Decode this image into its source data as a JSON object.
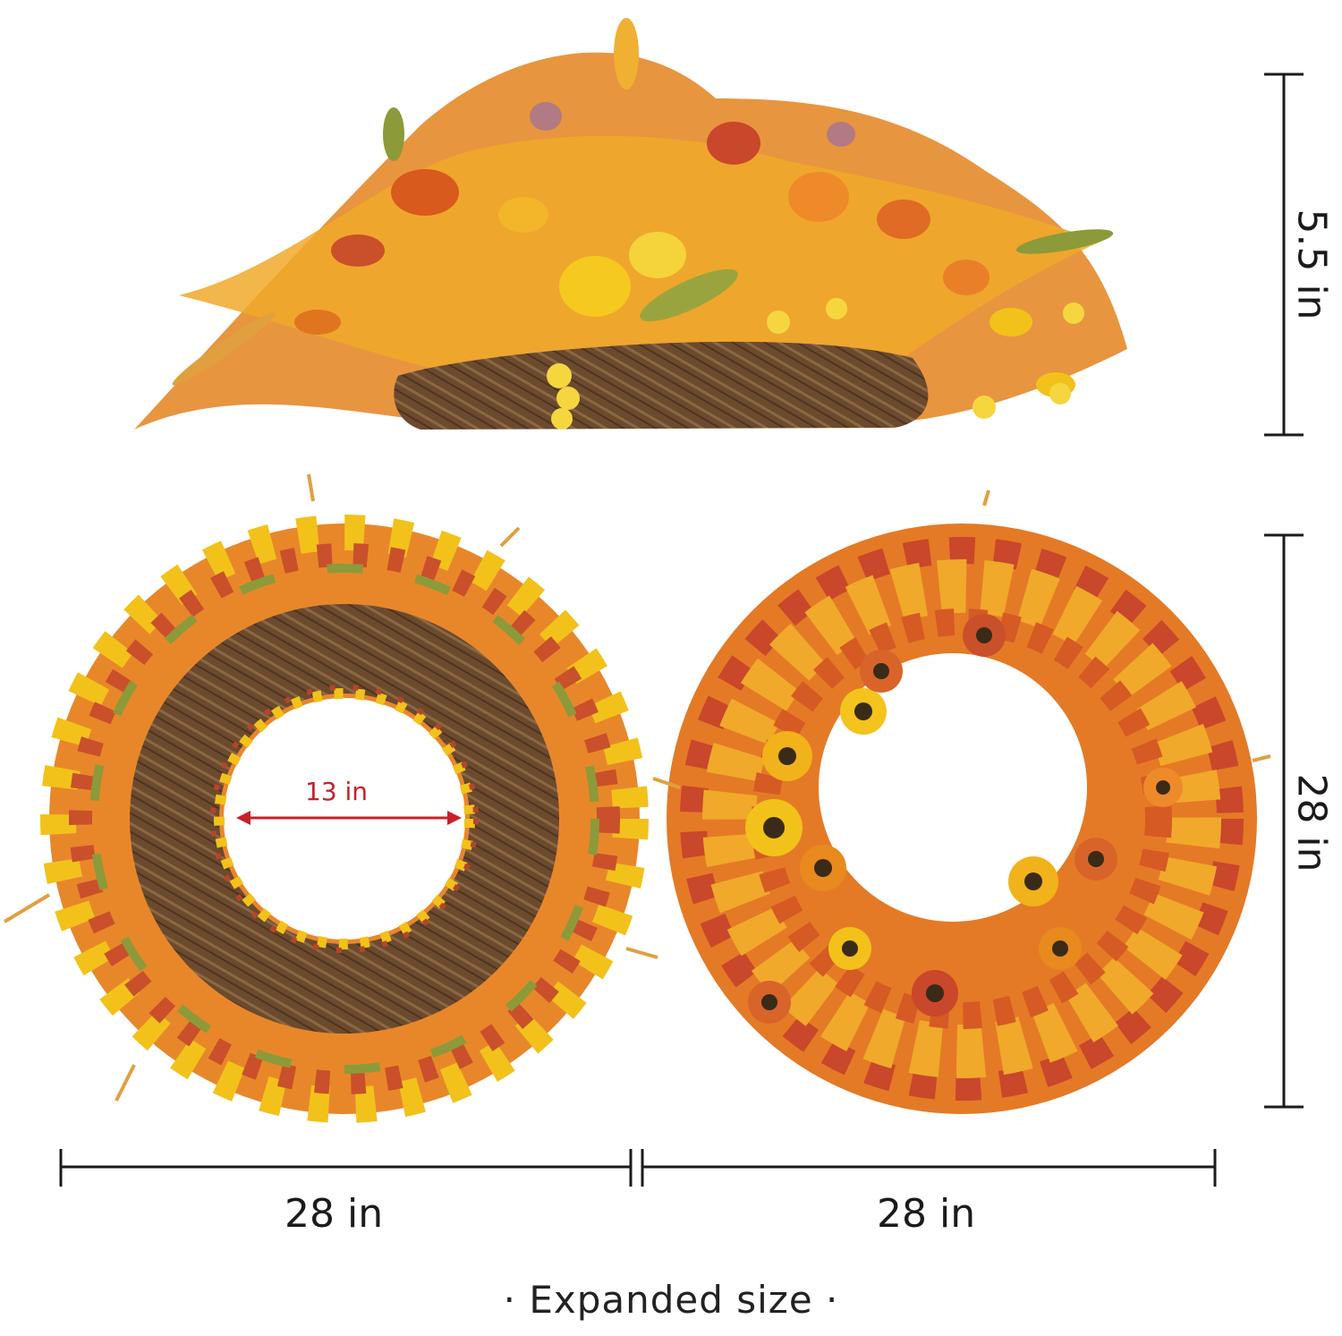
{
  "image": {
    "subject": "autumn-wreath-product-dimensions",
    "colors": {
      "background": "#ffffff",
      "dimension_line": "#1b1b1b",
      "inner_arrow": "#c8202a",
      "vine": "#6b4a2e",
      "orange": "#e0751f",
      "yellow": "#f2c21b",
      "rust": "#b4462a",
      "leaf_green": "#8c9a3a",
      "mauve": "#b27a82"
    }
  },
  "dimensions": {
    "top_height": "5.5 in",
    "right_height": "28 in",
    "left_width": "28 in",
    "right_width": "28 in",
    "inner_diameter": "13 in"
  },
  "caption": {
    "text": "Expanded size",
    "bullet_left": "·",
    "bullet_right": "·"
  }
}
